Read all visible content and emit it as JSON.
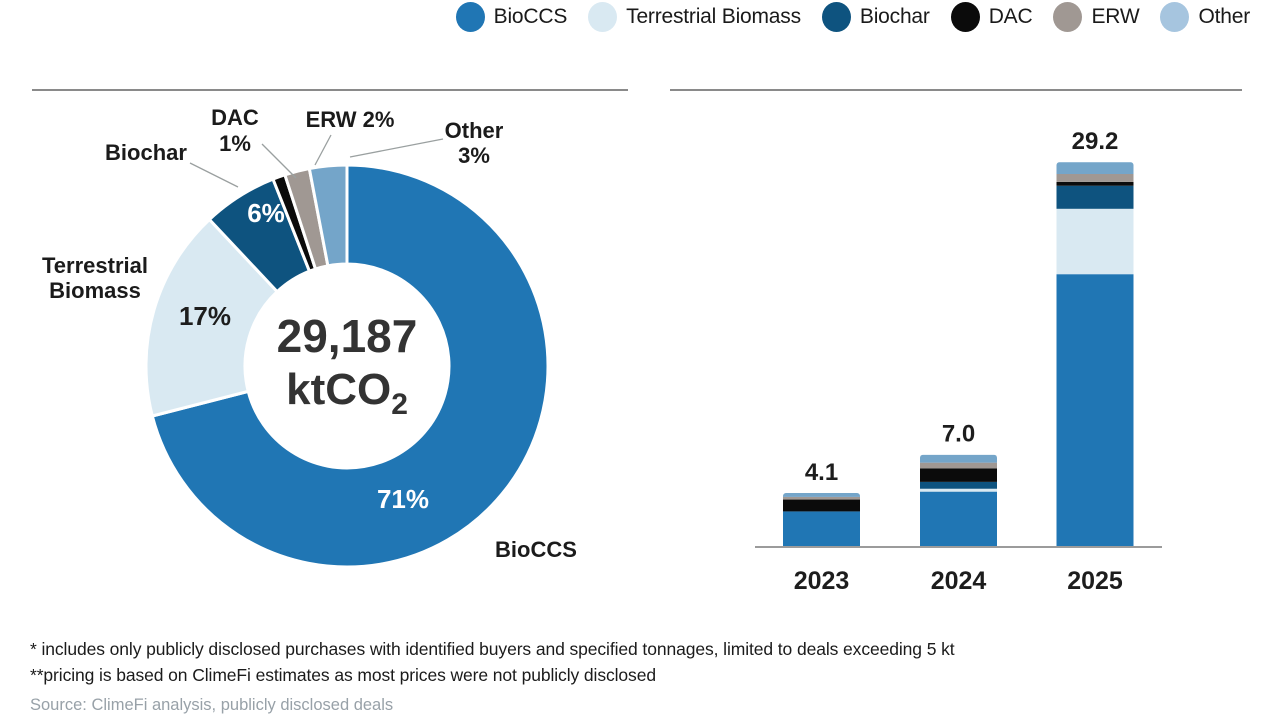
{
  "legend": {
    "items": [
      {
        "name": "BioCCS",
        "label": "BioCCS"
      },
      {
        "name": "Terrestrial Biomass",
        "label": "Terrestrial Biomass"
      },
      {
        "name": "Biochar",
        "label": "Biochar"
      },
      {
        "name": "DAC",
        "label": "DAC"
      },
      {
        "name": "ERW",
        "label": "ERW"
      },
      {
        "name": "Other",
        "label": "Other",
        "legend_color": "#a6c5df"
      }
    ]
  },
  "palette": {
    "BioCCS": "#2076b4",
    "Terrestrial Biomass": "#d9e9f2",
    "Biochar": "#0e537f",
    "DAC": "#0b0b0b",
    "ERW": "#a09893",
    "Other": "#74a5c9"
  },
  "chart_data": [
    {
      "type": "pie",
      "subtype": "donut",
      "center_value": "29,187",
      "center_unit_main": "ktCO",
      "center_unit_sub": "2",
      "slices": [
        {
          "name": "BioCCS",
          "pct": 71,
          "inside_label": "71%",
          "outside_lines": [
            "BioCCS"
          ]
        },
        {
          "name": "Terrestrial Biomass",
          "pct": 17,
          "inside_label": "17%",
          "outside_lines": [
            "Terrestrial",
            "Biomass"
          ]
        },
        {
          "name": "Biochar",
          "pct": 6,
          "inside_label": "6%",
          "outside_lines": [
            "Biochar"
          ]
        },
        {
          "name": "DAC",
          "pct": 1,
          "outside_lines": [
            "DAC",
            "1%"
          ]
        },
        {
          "name": "ERW",
          "pct": 2,
          "outside_lines": [
            "ERW 2%"
          ]
        },
        {
          "name": "Other",
          "pct": 3,
          "outside_lines": [
            "Other",
            "3%"
          ]
        }
      ]
    },
    {
      "type": "bar",
      "stacked": true,
      "categories": [
        "2023",
        "2024",
        "2025"
      ],
      "totals_display": [
        "4.1",
        "7.0",
        "29.2"
      ],
      "series": [
        {
          "name": "BioCCS",
          "values": [
            2.7,
            4.2,
            20.7
          ]
        },
        {
          "name": "Terrestrial Biomass",
          "values": [
            0,
            0.22,
            4.96
          ]
        },
        {
          "name": "Biochar",
          "values": [
            0,
            0.52,
            1.75
          ]
        },
        {
          "name": "DAC",
          "values": [
            0.9,
            1.03,
            0.29
          ]
        },
        {
          "name": "ERW",
          "values": [
            0.2,
            0.43,
            0.6
          ]
        },
        {
          "name": "Other",
          "values": [
            0.3,
            0.6,
            0.9
          ]
        }
      ],
      "ylabel": "",
      "xlabel": "",
      "grid": false,
      "legend_position": "top-right"
    }
  ],
  "footnotes": {
    "line1": "* includes only publicly disclosed purchases with identified buyers and specified tonnages, limited to deals exceeding 5 kt",
    "line2": "**pricing is based on ClimeFi estimates as most prices were not publicly disclosed",
    "source": "Source: ClimeFi analysis, publicly disclosed deals"
  }
}
